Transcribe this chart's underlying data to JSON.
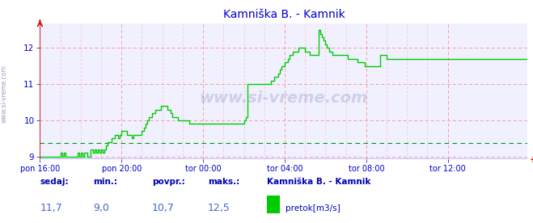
{
  "title": "Kamniška B. - Kamnik",
  "bg_color": "#ffffff",
  "plot_bg_color": "#f0f0ff",
  "line_color": "#00cc00",
  "dashed_line_color": "#009900",
  "grid_color": "#ff9999",
  "axis_color": "#0000cc",
  "title_color": "#0000cc",
  "border_left_color": "#cc0000",
  "border_bottom_color": "#0000ff",
  "xlim": [
    0,
    287
  ],
  "ylim": [
    8.92,
    12.68
  ],
  "yticks": [
    9,
    10,
    11,
    12
  ],
  "xtick_labels": [
    "pon 16:00",
    "pon 20:00",
    "tor 00:00",
    "tor 04:00",
    "tor 08:00",
    "tor 12:00"
  ],
  "xtick_positions": [
    0,
    48,
    96,
    144,
    192,
    240
  ],
  "dashed_value": 9.38,
  "watermark": "www.si-vreme.com",
  "footer_labels": [
    "sedaj:",
    "min.:",
    "povpr.:",
    "maks.:"
  ],
  "footer_values": [
    "11,7",
    "9,0",
    "10,7",
    "12,5"
  ],
  "legend_title": "Kamniška B. - Kamnik",
  "legend_series": "pretok[m3/s]",
  "legend_color": "#00cc00",
  "flow_data": [
    9.0,
    9.0,
    9.0,
    9.0,
    9.0,
    9.0,
    9.0,
    9.0,
    9.0,
    9.0,
    9.0,
    9.0,
    9.1,
    9.0,
    9.1,
    9.0,
    9.0,
    9.0,
    9.0,
    9.0,
    9.0,
    9.0,
    9.1,
    9.0,
    9.1,
    9.0,
    9.1,
    9.1,
    9.0,
    9.0,
    9.2,
    9.1,
    9.2,
    9.1,
    9.2,
    9.1,
    9.2,
    9.1,
    9.2,
    9.3,
    9.4,
    9.4,
    9.5,
    9.5,
    9.6,
    9.6,
    9.5,
    9.6,
    9.7,
    9.7,
    9.7,
    9.6,
    9.6,
    9.6,
    9.5,
    9.6,
    9.6,
    9.6,
    9.6,
    9.6,
    9.7,
    9.8,
    9.9,
    10.0,
    10.1,
    10.1,
    10.2,
    10.2,
    10.3,
    10.3,
    10.3,
    10.4,
    10.4,
    10.4,
    10.4,
    10.3,
    10.3,
    10.2,
    10.1,
    10.1,
    10.1,
    10.0,
    10.0,
    10.0,
    10.0,
    10.0,
    10.0,
    10.0,
    9.9,
    9.9,
    9.9,
    9.9,
    9.9,
    9.9,
    9.9,
    9.9,
    9.9,
    9.9,
    9.9,
    9.9,
    9.9,
    9.9,
    9.9,
    9.9,
    9.9,
    9.9,
    9.9,
    9.9,
    9.9,
    9.9,
    9.9,
    9.9,
    9.9,
    9.9,
    9.9,
    9.9,
    9.9,
    9.9,
    9.9,
    9.9,
    10.0,
    10.1,
    11.0,
    11.0,
    11.0,
    11.0,
    11.0,
    11.0,
    11.0,
    11.0,
    11.0,
    11.0,
    11.0,
    11.0,
    11.0,
    11.0,
    11.1,
    11.1,
    11.2,
    11.2,
    11.3,
    11.4,
    11.5,
    11.5,
    11.6,
    11.6,
    11.7,
    11.8,
    11.8,
    11.9,
    11.9,
    11.9,
    12.0,
    12.0,
    12.0,
    12.0,
    11.9,
    11.9,
    11.9,
    11.8,
    11.8,
    11.8,
    11.8,
    11.8,
    12.5,
    12.4,
    12.3,
    12.2,
    12.1,
    12.0,
    11.9,
    11.9,
    11.8,
    11.8,
    11.8,
    11.8,
    11.8,
    11.8,
    11.8,
    11.8,
    11.8,
    11.7,
    11.7,
    11.7,
    11.7,
    11.7,
    11.7,
    11.6,
    11.6,
    11.6,
    11.6,
    11.5,
    11.5,
    11.5,
    11.5,
    11.5,
    11.5,
    11.5,
    11.5,
    11.5,
    11.8,
    11.8,
    11.8,
    11.8,
    11.7,
    11.7,
    11.7,
    11.7,
    11.7,
    11.7,
    11.7,
    11.7,
    11.7,
    11.7,
    11.7,
    11.7,
    11.7,
    11.7,
    11.7,
    11.7,
    11.7,
    11.7,
    11.7,
    11.7,
    11.7,
    11.7,
    11.7,
    11.7,
    11.7,
    11.7,
    11.7,
    11.7,
    11.7,
    11.7,
    11.7,
    11.7,
    11.7,
    11.7,
    11.7,
    11.7,
    11.7,
    11.7,
    11.7,
    11.7,
    11.7,
    11.7,
    11.7,
    11.7,
    11.7,
    11.7,
    11.7,
    11.7,
    11.7,
    11.7,
    11.7,
    11.7,
    11.7,
    11.7,
    11.7,
    11.7,
    11.7,
    11.7,
    11.7,
    11.7,
    11.7,
    11.7,
    11.7,
    11.7,
    11.7,
    11.7,
    11.7,
    11.7,
    11.7,
    11.7,
    11.7,
    11.7,
    11.7,
    11.7,
    11.7,
    11.7,
    11.7,
    11.7,
    11.7,
    11.7,
    11.7,
    11.7,
    11.7,
    11.7
  ]
}
